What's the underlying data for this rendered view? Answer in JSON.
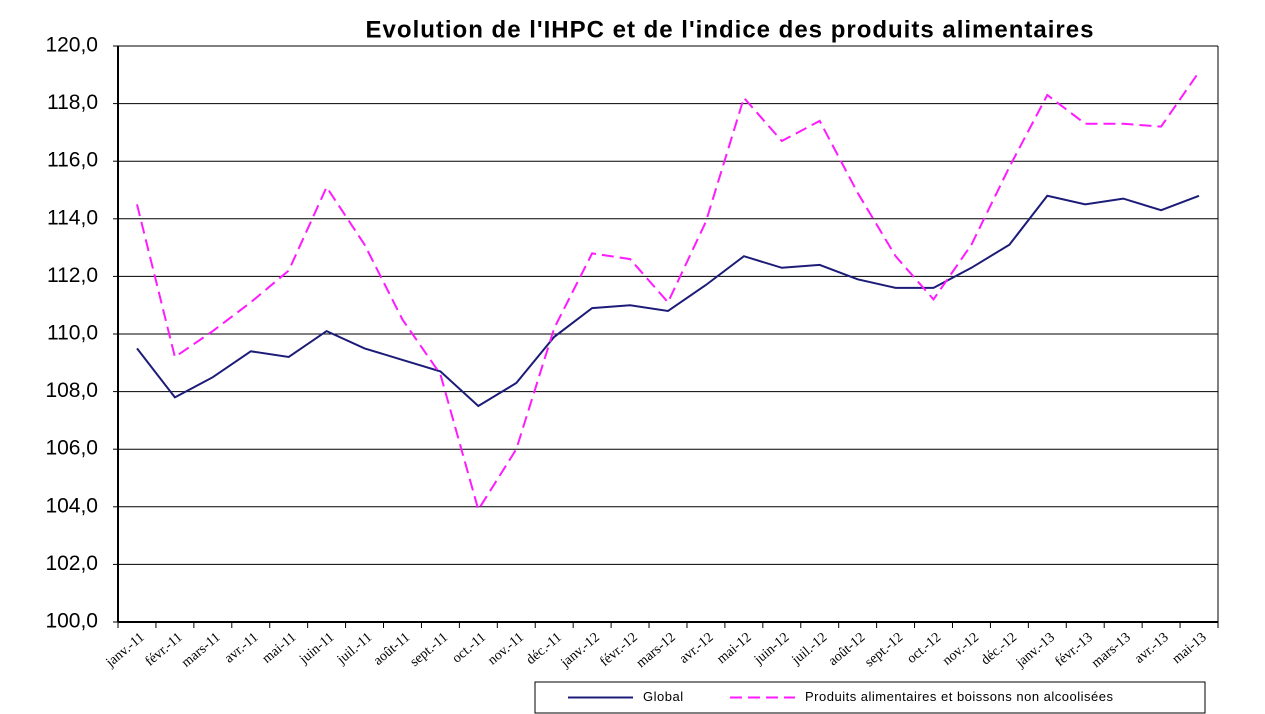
{
  "chart_data": {
    "type": "line",
    "title": "Evolution de l'IHPC et de l'indice des produits alimentaires",
    "categories": [
      "janv.-11",
      "févr.-11",
      "mars-11",
      "avr.-11",
      "mai-11",
      "juin-11",
      "juil.-11",
      "août-11",
      "sept.-11",
      "oct.-11",
      "nov.-11",
      "déc.-11",
      "janv.-12",
      "févr.-12",
      "mars-12",
      "avr.-12",
      "mai-12",
      "juin-12",
      "juil.-12",
      "août-12",
      "sept.-12",
      "oct.-12",
      "nov.-12",
      "déc.-12",
      "janv.-13",
      "févr.-13",
      "mars-13",
      "avr.-13",
      "mai-13"
    ],
    "series": [
      {
        "name": "Global",
        "color": "#1c1c78",
        "dash": false,
        "values": [
          109.5,
          107.8,
          108.5,
          109.4,
          109.2,
          110.1,
          109.5,
          109.1,
          108.7,
          107.5,
          108.3,
          109.9,
          110.9,
          111.0,
          110.8,
          111.7,
          112.7,
          112.3,
          112.4,
          111.9,
          111.6,
          111.6,
          112.3,
          113.1,
          114.8,
          114.5,
          114.7,
          114.3,
          114.8
        ]
      },
      {
        "name": "Produits alimentaires et boissons non alcoolisées",
        "color": "#ff1aff",
        "dash": true,
        "values": [
          114.5,
          109.2,
          110.1,
          111.1,
          112.2,
          115.1,
          113.1,
          110.5,
          108.6,
          103.9,
          106.0,
          110.2,
          112.8,
          112.6,
          111.1,
          113.9,
          118.2,
          116.7,
          117.4,
          114.9,
          112.7,
          111.2,
          113.1,
          115.8,
          118.3,
          117.3,
          117.3,
          117.2,
          119.1
        ]
      }
    ],
    "ylim": [
      100,
      120
    ],
    "yticks": [
      {
        "value": 100,
        "label": "100,0"
      },
      {
        "value": 102,
        "label": "102,0"
      },
      {
        "value": 104,
        "label": "104,0"
      },
      {
        "value": 106,
        "label": "106,0"
      },
      {
        "value": 108,
        "label": "108,0"
      },
      {
        "value": 110,
        "label": "110,0"
      },
      {
        "value": 112,
        "label": "112,0"
      },
      {
        "value": 114,
        "label": "114,0"
      },
      {
        "value": 116,
        "label": "116,0"
      },
      {
        "value": 118,
        "label": "118,0"
      },
      {
        "value": 120,
        "label": "120,0"
      }
    ],
    "grid": true,
    "legend": "bottom"
  }
}
